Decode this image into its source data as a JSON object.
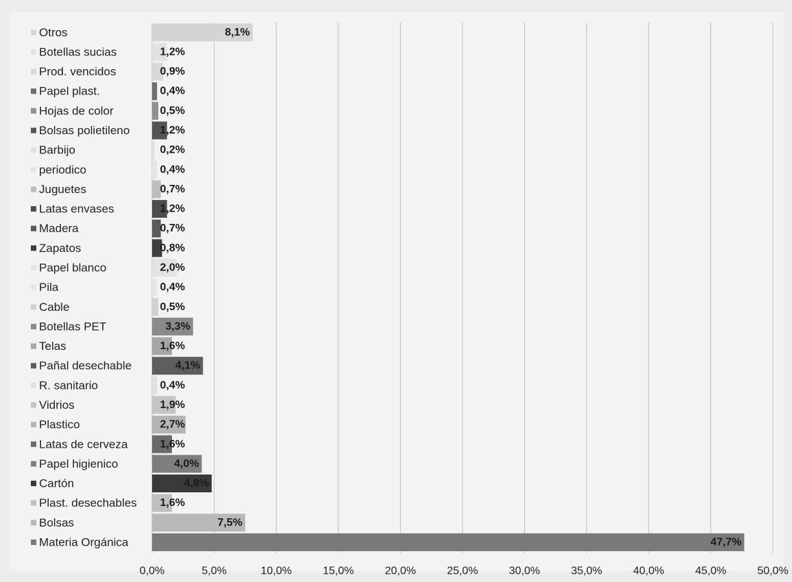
{
  "chart_data": {
    "type": "bar",
    "orientation": "horizontal",
    "categories": [
      "Otros",
      "Botellas sucias",
      "Prod. vencidos",
      "Papel plast.",
      "Hojas de color",
      "Bolsas polietileno",
      "Barbijo",
      "periodico",
      "Juguetes",
      "Latas envases",
      "Madera",
      "Zapatos",
      "Papel blanco",
      "Pila",
      "Cable",
      "Botellas PET",
      "Telas",
      "Pañal desechable",
      "R. sanitario",
      "Vidrios",
      "Plastico",
      "Latas de cerveza",
      "Papel higienico",
      "Cartón",
      "Plast. desechables",
      "Bolsas",
      "Materia Orgánica"
    ],
    "values": [
      8.1,
      1.2,
      0.9,
      0.4,
      0.5,
      1.2,
      0.2,
      0.4,
      0.7,
      1.2,
      0.7,
      0.8,
      2.0,
      0.4,
      0.5,
      3.3,
      1.6,
      4.1,
      0.4,
      1.9,
      2.7,
      1.6,
      4.0,
      4.8,
      1.6,
      7.5,
      47.7
    ],
    "value_labels": [
      "8,1%",
      "1,2%",
      "0,9%",
      "0,4%",
      "0,5%",
      "1,2%",
      "0,2%",
      "0,4%",
      "0,7%",
      "1,2%",
      "0,7%",
      "0,8%",
      "2,0%",
      "0,4%",
      "0,5%",
      "3,3%",
      "1,6%",
      "4,1%",
      "0,4%",
      "1,9%",
      "2,7%",
      "1,6%",
      "4,0%",
      "4,8%",
      "1,6%",
      "7,5%",
      "47,7%"
    ],
    "colors": [
      "#d4d4d4",
      "#e2e2e2",
      "#d8d8d8",
      "#6e6e6e",
      "#909090",
      "#555555",
      "#e0e0e0",
      "#e4e4e4",
      "#bdbdbd",
      "#4c4c4c",
      "#5a5a5a",
      "#3e3e3e",
      "#e3e3e3",
      "#e6e6e6",
      "#d0d0d0",
      "#8a8a8a",
      "#a6a6a6",
      "#5e5e5e",
      "#e0e0e0",
      "#c4c4c4",
      "#b4b4b4",
      "#6a6a6a",
      "#7e7e7e",
      "#3a3a3a",
      "#c0c0c0",
      "#b8b8b8",
      "#7a7a7a"
    ],
    "xlim": [
      0,
      50
    ],
    "x_ticks": [
      0,
      5,
      10,
      15,
      20,
      25,
      30,
      35,
      40,
      45,
      50
    ],
    "x_tick_labels": [
      "0,0%",
      "5,0%",
      "10,0%",
      "15,0%",
      "20,0%",
      "25,0%",
      "30,0%",
      "35,0%",
      "40,0%",
      "45,0%",
      "50,0%"
    ],
    "grid": "vertical",
    "legend": "left, inline with categories",
    "title": "",
    "xlabel": "",
    "ylabel": ""
  }
}
